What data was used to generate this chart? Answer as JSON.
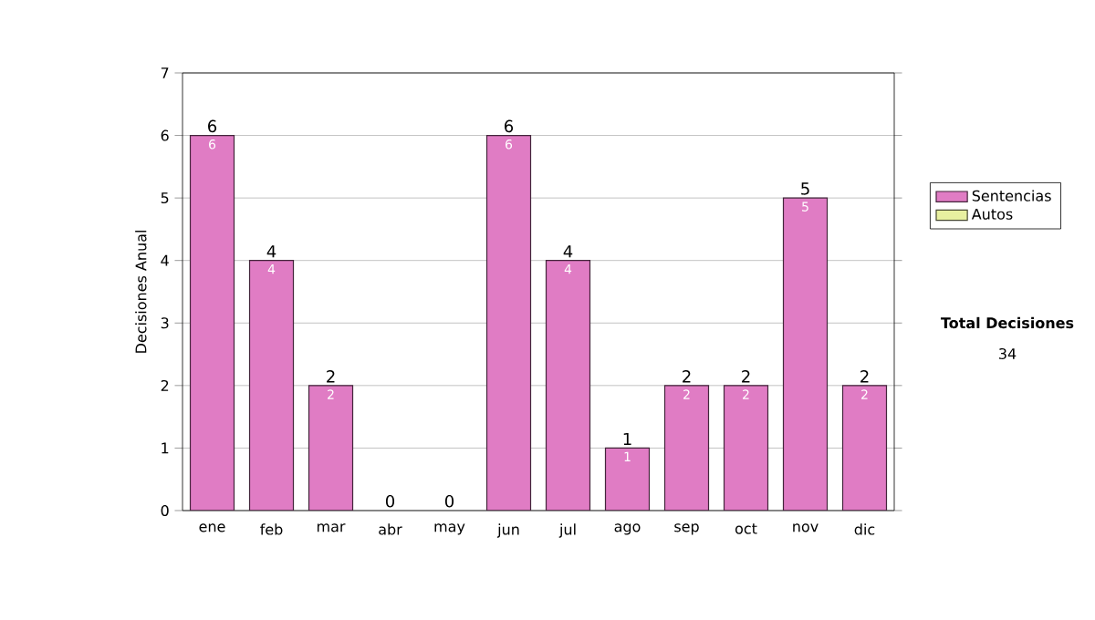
{
  "chart_data": {
    "type": "bar",
    "stacked": true,
    "ylabel": "Decisiones Anual",
    "categories": [
      "ene",
      "feb",
      "mar",
      "abr",
      "may",
      "jun",
      "jul",
      "ago",
      "sep",
      "oct",
      "nov",
      "dic"
    ],
    "series": [
      {
        "name": "Sentencias",
        "color": "#e07cc4",
        "values": [
          6,
          4,
          2,
          0,
          0,
          6,
          4,
          1,
          2,
          2,
          5,
          2
        ],
        "value_labels": [
          "6",
          "4",
          "2",
          null,
          null,
          "6",
          "4",
          "1",
          "2",
          "2",
          "5",
          "2"
        ]
      },
      {
        "name": "Autos",
        "color": "#e8f0a0",
        "values": [
          0,
          0,
          0,
          0,
          0,
          0,
          0,
          0,
          0,
          0,
          0,
          0
        ]
      }
    ],
    "totals": [
      "6",
      "4",
      "2",
      "0",
      "0",
      "6",
      "4",
      "1",
      "2",
      "2",
      "5",
      "2"
    ],
    "ylim": [
      0,
      7
    ],
    "yticks": [
      0,
      1,
      2,
      3,
      4,
      5,
      6,
      7
    ],
    "grid": "y",
    "legend": "right",
    "annotations": [
      "**Total Decisiones**",
      "34"
    ]
  }
}
